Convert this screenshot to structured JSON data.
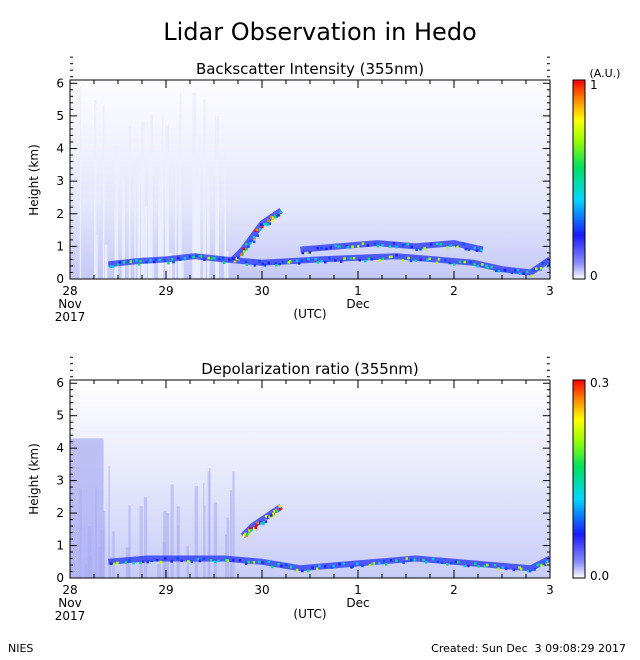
{
  "title": "Lidar Observation in Hedo",
  "footer": {
    "left": "NIES",
    "right": "Created: Sun Dec  3 09:08:29 2017"
  },
  "x_axis": {
    "utc_label": "(UTC)",
    "ticks": [
      {
        "day": 28,
        "label": "28",
        "sub1": "Nov",
        "sub2": "2017"
      },
      {
        "day": 29,
        "label": "29",
        "sub1": "",
        "sub2": ""
      },
      {
        "day": 30,
        "label": "30",
        "sub1": "",
        "sub2": ""
      },
      {
        "day": 31,
        "label": "1",
        "sub1": "Dec",
        "sub2": ""
      },
      {
        "day": 32,
        "label": "2",
        "sub1": "",
        "sub2": ""
      },
      {
        "day": 33,
        "label": "3",
        "sub1": "",
        "sub2": ""
      }
    ]
  },
  "chart_data": [
    {
      "type": "heatmap",
      "title": "Backscatter Intensity (355nm)",
      "ylabel": "Height (km)",
      "xlim": [
        28,
        33
      ],
      "ylim": [
        0,
        6.1
      ],
      "y_ticks": [
        0,
        1,
        2,
        3,
        4,
        5,
        6
      ],
      "colorbar": {
        "min_label": "0",
        "max_label": "1",
        "unit": "(A.U.)",
        "range": [
          0,
          1
        ]
      },
      "layers": [
        {
          "name": "boundary layer",
          "x": [
            28.4,
            28.7,
            29.0,
            29.3,
            29.6,
            30.0,
            30.3,
            30.6,
            31.0,
            31.4,
            31.8,
            32.2,
            32.5,
            32.8,
            33.0
          ],
          "y": [
            0.45,
            0.55,
            0.6,
            0.7,
            0.6,
            0.5,
            0.55,
            0.6,
            0.65,
            0.7,
            0.6,
            0.5,
            0.3,
            0.2,
            0.6
          ]
        },
        {
          "name": "elevated layer",
          "x": [
            29.7,
            29.8,
            29.9,
            30.0,
            30.1,
            30.2
          ],
          "y": [
            0.6,
            0.9,
            1.3,
            1.7,
            1.9,
            2.1
          ]
        },
        {
          "name": "mid-level cloud",
          "x": [
            30.4,
            30.8,
            31.2,
            31.6,
            32.0,
            32.3
          ],
          "y": [
            0.9,
            1.0,
            1.1,
            1.0,
            1.1,
            0.9
          ]
        }
      ]
    },
    {
      "type": "heatmap",
      "title": "Depolarization ratio (355nm)",
      "ylabel": "Height (km)",
      "xlim": [
        28,
        33
      ],
      "ylim": [
        0,
        6.1
      ],
      "y_ticks": [
        0,
        1,
        2,
        3,
        4,
        5,
        6
      ],
      "colorbar": {
        "min_label": "0.0",
        "max_label": "0.3",
        "unit": "",
        "range": [
          0,
          0.3
        ]
      },
      "layers": [
        {
          "name": "low-level depolarization",
          "x": [
            28.4,
            28.8,
            29.2,
            29.6,
            30.0,
            30.4,
            30.8,
            31.2,
            31.6,
            32.0,
            32.4,
            32.8,
            33.0
          ],
          "y": [
            0.5,
            0.6,
            0.6,
            0.6,
            0.5,
            0.3,
            0.4,
            0.5,
            0.6,
            0.5,
            0.4,
            0.3,
            0.6
          ]
        },
        {
          "name": "elevated layer",
          "x": [
            29.8,
            29.9,
            30.0,
            30.1,
            30.2
          ],
          "y": [
            1.3,
            1.6,
            1.8,
            2.0,
            2.2
          ]
        }
      ]
    }
  ]
}
